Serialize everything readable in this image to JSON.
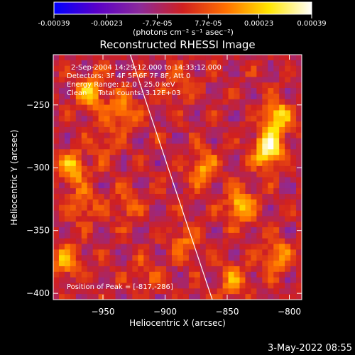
{
  "chart_data": {
    "type": "heatmap",
    "title": "Reconstructed RHESSI Image",
    "colorbar": {
      "tick_labels": [
        "-0.00039",
        "-0.00023",
        "-7.7e-05",
        "7.7e-05",
        "0.00023",
        "0.00039"
      ],
      "ticks": [
        -0.00039,
        -0.00023,
        -7.7e-05,
        7.7e-05,
        0.00023,
        0.00039
      ],
      "range": [
        -0.00039,
        0.00039
      ],
      "unit_label": "(photons cm⁻² s⁻¹ asec⁻²)",
      "colors": [
        "#0000ff",
        "#5a00c8",
        "#8c2a9a",
        "#d02020",
        "#ff7000",
        "#ffe600",
        "#ffffff"
      ]
    },
    "xlabel": "Heliocentric X (arcsec)",
    "ylabel": "Heliocentric Y (arcsec)",
    "xlim": [
      -990,
      -790
    ],
    "ylim": [
      -405,
      -210
    ],
    "x_ticks": [
      -950,
      -900,
      -850,
      -800
    ],
    "x_tick_labels": [
      "−950",
      "−900",
      "−850",
      "−800"
    ],
    "y_ticks": [
      -250,
      -300,
      -350,
      -400
    ],
    "y_tick_labels": [
      "−250",
      "−300",
      "−350",
      "−400"
    ],
    "limb_line": {
      "from": [
        -928,
        -210
      ],
      "to": [
        -862,
        -405
      ]
    },
    "hot_spots": [
      {
        "x": -817,
        "y": -286,
        "value": 0.00039
      },
      {
        "x": -810,
        "y": -260,
        "value": 0.0003
      },
      {
        "x": -840,
        "y": -330,
        "value": 0.00028
      },
      {
        "x": -870,
        "y": -300,
        "value": 0.00022
      },
      {
        "x": -960,
        "y": -240,
        "value": 0.00025
      },
      {
        "x": -935,
        "y": -255,
        "value": 0.0002
      },
      {
        "x": -975,
        "y": -300,
        "value": 0.00025
      },
      {
        "x": -965,
        "y": -330,
        "value": 0.00015
      },
      {
        "x": -980,
        "y": -375,
        "value": 0.0002
      },
      {
        "x": -930,
        "y": -330,
        "value": 0.00012
      },
      {
        "x": -885,
        "y": -360,
        "value": 0.00015
      },
      {
        "x": -915,
        "y": -385,
        "value": 0.0001
      },
      {
        "x": -845,
        "y": -390,
        "value": 0.00018
      },
      {
        "x": -890,
        "y": -235,
        "value": 0.00012
      },
      {
        "x": -950,
        "y": -280,
        "value": 0.0001
      },
      {
        "x": -810,
        "y": -370,
        "value": 0.0002
      }
    ],
    "annotations": {
      "time": "2-Sep-2004 14:29:12.000 to 14:33:12.000",
      "detectors": "Detectors: 3F 4F 5F 6F 7F 8F, Att 0",
      "energy": "Energy Range: 12.0 - 25.0 keV",
      "clean": "Clean     Total counts: 3.12E+03",
      "peak": "Position of Peak = [-817,-286]"
    }
  },
  "footer": {
    "timestamp": "3-May-2022 08:55"
  }
}
